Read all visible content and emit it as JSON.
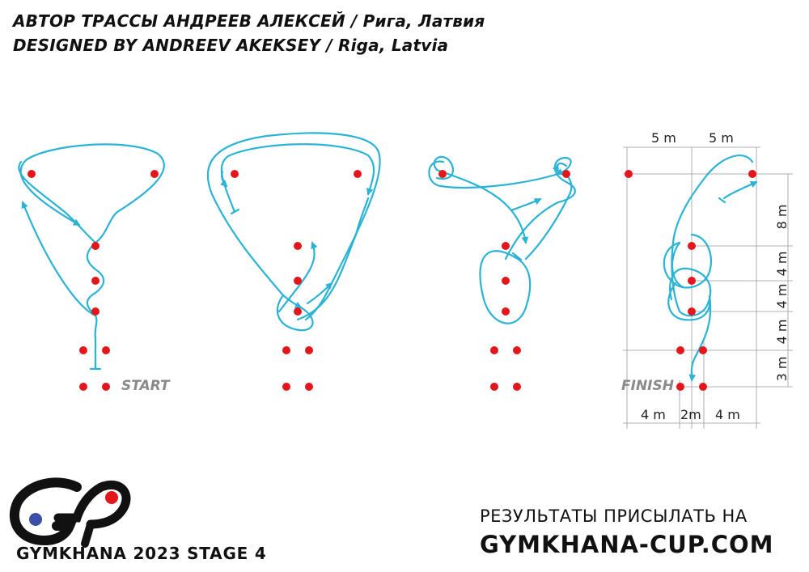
{
  "header": {
    "line_ru": "АВТОР ТРАССЫ АНДРЕЕВ АЛЕКСЕЙ / Рига, Латвия",
    "line_en": "DESIGNED BY ANDREEV AKEKSEY / Riga, Latvia"
  },
  "diagram": {
    "start_label": "START",
    "finish_label": "FINISH",
    "dimensions_top": [
      "5 m",
      "5 m"
    ],
    "dimensions_bottom": [
      "4 m",
      "2m",
      "4 m"
    ],
    "dimensions_right": [
      "8 m",
      "4 m",
      "4 m",
      "4 m",
      "3 m"
    ],
    "colors": {
      "cone": "#e2161b",
      "path": "#2bb3d6",
      "guide": "#999999"
    }
  },
  "footer": {
    "brand": "GYMKHANA 2023 STAGE 4",
    "results_label": "РЕЗУЛЬТАТЫ ПРИСЫЛАТЬ НА",
    "website": "GYMKHANA-CUP.COM",
    "logo_colors": {
      "mark": "#111111",
      "red_dot": "#e2161b",
      "blue_dot": "#3a4fa5"
    }
  }
}
